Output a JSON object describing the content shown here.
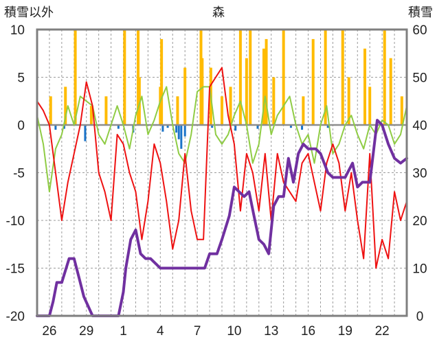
{
  "chart_data": {
    "type": "line",
    "title": "森",
    "left_axis_label": "積雪以外",
    "right_axis_label": "積雪",
    "y_left": {
      "min": -20,
      "max": 10,
      "ticks": [
        10,
        5,
        0,
        -5,
        -10,
        -15,
        -20
      ]
    },
    "y_right": {
      "min": 0,
      "max": 60,
      "ticks": [
        60,
        50,
        40,
        30,
        20,
        10,
        0
      ]
    },
    "x": {
      "min": 0,
      "max": 30,
      "ticks": [
        1,
        4,
        7,
        10,
        13,
        16,
        19,
        22,
        25,
        28
      ],
      "tick_labels": [
        "26",
        "29",
        "1",
        "4",
        "7",
        "10",
        "13",
        "16",
        "19",
        "22"
      ]
    },
    "grid": "dashed vertical per day; dashed horizontal at y-ticks",
    "colors": {
      "temperature": "#ee1111",
      "humidity": "#8fcc44",
      "precip": "#ffbb00",
      "snowfall_bar": "#1a73c8",
      "snow_depth": "#7030a0",
      "axis_frame": "#7f7f7f"
    },
    "series": [
      {
        "key": "temperature",
        "axis": "left",
        "x": [
          0,
          0.5,
          1.0,
          1.5,
          2.0,
          2.5,
          3.0,
          3.5,
          4.0,
          4.5,
          5.0,
          5.5,
          6.0,
          6.5,
          7.0,
          7.5,
          8.0,
          8.5,
          9.0,
          9.5,
          10.0,
          10.5,
          11.0,
          11.5,
          12.0,
          12.5,
          13.0,
          13.5,
          14.0,
          14.5,
          15.0,
          15.5,
          16.0,
          16.5,
          17.0,
          17.5,
          18.0,
          18.5,
          19.0,
          19.5,
          20.0,
          20.5,
          21.0,
          21.5,
          22.0,
          22.5,
          23.0,
          23.5,
          24.0,
          24.5,
          25.0,
          25.5,
          26.0,
          26.5,
          27.0,
          27.5,
          28.0,
          28.5,
          29.0,
          29.5,
          30.0
        ],
        "y": [
          2.5,
          1.5,
          0,
          -5,
          -10,
          -6,
          -3,
          0,
          4.5,
          2,
          -5,
          -7,
          -10,
          -1,
          -2,
          -5,
          -7,
          -12,
          -8,
          -2,
          -4,
          -8,
          -13,
          -10,
          -3,
          -9,
          -12,
          -12,
          4,
          5,
          6,
          1,
          -2,
          -9,
          -3,
          -5,
          -9,
          -3,
          -10,
          -3,
          -6,
          -7,
          -8,
          -4,
          -3,
          -6,
          -9,
          -4,
          -2,
          -4,
          -9,
          -5,
          -10,
          -14,
          -3,
          -15,
          -12,
          -14,
          -7,
          -10,
          -8
        ]
      },
      {
        "key": "humidity",
        "axis": "right",
        "x": [
          0,
          0.5,
          1.0,
          1.5,
          2.0,
          2.5,
          3.0,
          3.5,
          4.0,
          4.5,
          5.0,
          5.5,
          6.0,
          6.5,
          7.0,
          7.5,
          8.0,
          8.5,
          9.0,
          9.5,
          10.0,
          10.5,
          11.0,
          11.5,
          12.0,
          12.5,
          13.0,
          13.5,
          14.0,
          14.5,
          15.0,
          15.5,
          16.0,
          16.5,
          17.0,
          17.5,
          18.0,
          18.5,
          19.0,
          19.5,
          20.0,
          20.5,
          21.0,
          21.5,
          22.0,
          22.5,
          23.0,
          23.5,
          24.0,
          24.5,
          25.0,
          25.5,
          26.0,
          26.5,
          27.0,
          27.5,
          28.0,
          28.5,
          29.0,
          29.5,
          30.0
        ],
        "y": [
          42,
          36,
          26,
          35,
          38,
          44,
          40,
          46,
          45,
          44,
          38,
          36,
          40,
          44,
          40,
          35,
          42,
          46,
          38,
          41,
          45,
          48,
          40,
          34,
          32,
          38,
          47,
          48,
          48,
          38,
          36,
          38,
          42,
          45,
          40,
          32,
          36,
          46,
          38,
          42,
          44,
          46,
          40,
          36,
          38,
          32,
          40,
          44,
          34,
          36,
          40,
          42,
          38,
          35,
          40,
          38,
          41,
          40,
          36,
          38,
          44
        ]
      },
      {
        "key": "snow_depth",
        "axis": "right",
        "x": [
          0,
          1.0,
          1.3,
          1.6,
          2.0,
          2.6,
          3.0,
          3.4,
          3.8,
          4.5,
          5.0,
          5.5,
          6.0,
          6.6,
          7.0,
          7.2,
          7.6,
          8.0,
          8.4,
          8.8,
          9.2,
          9.6,
          10.0,
          10.8,
          11.4,
          12.0,
          12.8,
          13.6,
          14.0,
          14.6,
          15.0,
          15.6,
          16.0,
          16.8,
          17.2,
          17.6,
          18.0,
          18.4,
          18.8,
          19.2,
          19.6,
          20.0,
          20.4,
          20.8,
          21.2,
          21.6,
          22.0,
          22.6,
          23.0,
          23.6,
          24.0,
          24.6,
          25.0,
          25.6,
          26.0,
          26.4,
          27.0,
          27.6,
          28.0,
          28.5,
          29.0,
          29.5,
          30.0
        ],
        "y": [
          0,
          0,
          3,
          7,
          7,
          12,
          12,
          8,
          4,
          0,
          0,
          0,
          0,
          0,
          5,
          10,
          16,
          18,
          13,
          12,
          12,
          11,
          10,
          10,
          10,
          10,
          10,
          10,
          13,
          13,
          16,
          21,
          27,
          25,
          26,
          21,
          16,
          15,
          13,
          23,
          25,
          25,
          33,
          28,
          34,
          36,
          35,
          35,
          34,
          30,
          29,
          29,
          29,
          32,
          27,
          28,
          28,
          41,
          40,
          36,
          33,
          32,
          33
        ]
      },
      {
        "key": "precip",
        "axis": "left",
        "kind": "bars",
        "x": [
          1.1,
          2.3,
          3.1,
          4.4,
          5.6,
          7.1,
          8.2,
          8.3,
          10.0,
          10.1,
          11.4,
          12.0,
          13.3,
          13.4,
          14.1,
          15.0,
          15.7,
          16.5,
          17.0,
          17.3,
          18.4,
          18.6,
          19.2,
          20.0,
          21.6,
          22.4,
          23.4,
          24.8,
          25.3,
          26.6,
          27.0,
          28.2,
          28.7,
          29.6
        ],
        "y": [
          3,
          4,
          10,
          2,
          3,
          10,
          10,
          5,
          4,
          9,
          3,
          6,
          10,
          7,
          6,
          3,
          4,
          10,
          7,
          10,
          8,
          9,
          5,
          10,
          3,
          9,
          10,
          10,
          5,
          8,
          4,
          10,
          7,
          3
        ]
      },
      {
        "key": "snowfall_bar",
        "axis": "left",
        "kind": "bars",
        "x": [
          1.5,
          2.2,
          3.9,
          6.6,
          7.8,
          10.2,
          10.6,
          11.3,
          11.5,
          11.7,
          12.0,
          14.2,
          16.1,
          17.9,
          20.6,
          21.5,
          23.6
        ],
        "y": [
          -0.5,
          -0.4,
          -1.7,
          -0.4,
          -0.8,
          -0.7,
          -0.3,
          -0.8,
          -1.5,
          -2.5,
          -1.2,
          -0.3,
          -0.6,
          -0.4,
          -0.3,
          -0.5,
          -0.3
        ]
      }
    ]
  }
}
